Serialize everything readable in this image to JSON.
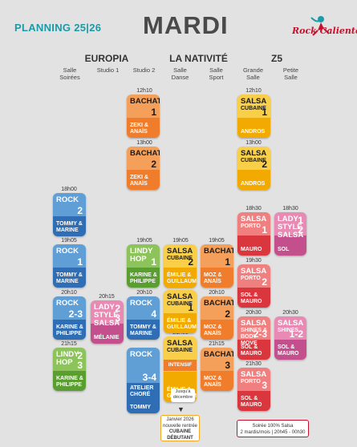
{
  "header": {
    "brand": "PLANNING 25|26",
    "day": "MARDI",
    "logo_text": "Rock Caliente"
  },
  "venues": [
    {
      "name": "EUROPIA"
    },
    {
      "name": "LA NATIVITÉ"
    },
    {
      "name": "Z5"
    }
  ],
  "rooms": [
    "Salle\nSoirées",
    "Studio 1",
    "Studio 2",
    "Salle\nDanse",
    "Salle\nSport",
    "Grande\nSalle",
    "Petite\nSalle"
  ],
  "times": [
    "12h10",
    "13h00",
    "18h00",
    "19h05",
    "20h10",
    "21h15",
    "20h15",
    "19h05",
    "20h10",
    "21h05",
    "19h05",
    "20h10",
    "21h15",
    "18h30",
    "19h30",
    "20h30",
    "21h30",
    "18h30",
    "20h30",
    "12h10",
    "13h00"
  ],
  "cards": {
    "c1": {
      "title": "BACHATA",
      "num": "1",
      "teach": "ZEKI &\nANAÏS"
    },
    "c2": {
      "title": "BACHATA",
      "num": "2",
      "teach": "ZEKI &\nANAÏS"
    },
    "c3": {
      "title": "SALSA",
      "sub": "CUBAINE",
      "num": "1",
      "teach": "ANDROS"
    },
    "c4": {
      "title": "SALSA",
      "sub": "CUBAINE",
      "num": "2",
      "teach": "ANDROS"
    },
    "c5": {
      "title": "ROCK",
      "num": "2",
      "teach": "TOMMY &\nMARINE"
    },
    "c6": {
      "title": "ROCK",
      "num": "1",
      "teach": "TOMMY &\nMARINE"
    },
    "c7": {
      "title": "ROCK",
      "num": "2-3",
      "teach": "KARINE &\nPHILIPPE"
    },
    "c8": {
      "title": "LINDY\nHOP",
      "num": "2\n3",
      "teach": "KARINE &\nPHILIPPE"
    },
    "c9": {
      "title": "LADY\nSTYLE\nSALSA",
      "num": "2\n3",
      "teach": "MÉLANIE"
    },
    "c10": {
      "title": "LINDY\nHOP",
      "num": "1",
      "teach": "KARINE &\nPHILIPPE"
    },
    "c11": {
      "title": "ROCK",
      "num": "4",
      "teach": "TOMMY &\nMARINE"
    },
    "c12": {
      "title": "ROCK",
      "num": "3-4",
      "teach": "ATELIER\nCHORÉ\n\nTOMMY"
    },
    "c13": {
      "title": "SALSA",
      "sub": "CUBAINE",
      "num": "2",
      "teach": "ÉMILIE &\nGUILLAUME"
    },
    "c14": {
      "title": "SALSA",
      "sub": "CUBAINE",
      "num": "1",
      "teach": "ÉMILIE &\nGUILLAUME"
    },
    "c15": {
      "title": "SALSA",
      "sub": "CUBAINE",
      "num": "1-2",
      "band": "INTENSIF",
      "teach": "ÉMILIE &\nGUILLAUME"
    },
    "c16": {
      "title": "BACHATA",
      "num": "1",
      "teach": "MOZ &\nANAÏS"
    },
    "c17": {
      "title": "BACHATA",
      "num": "2",
      "teach": "MOZ &\nANAÏS"
    },
    "c18": {
      "title": "BACHATA",
      "num": "3",
      "teach": "MOZ &\nANAÏS"
    },
    "c19": {
      "title": "SALSA",
      "sub": "PORTO",
      "num": "1",
      "teach": "MAURO"
    },
    "c20": {
      "title": "SALSA",
      "sub": "PORTO",
      "num": "2",
      "teach": "SOL &\nMAURO"
    },
    "c21": {
      "title": "SALSA",
      "sub": "Shines &\nBody Move",
      "num": "2-3",
      "teach": "SOL &\nMAURO"
    },
    "c22": {
      "title": "SALSA",
      "sub": "PORTO",
      "num": "3",
      "teach": "SOL &\nMAURO"
    },
    "c23": {
      "title": "LADY\nSTYLE\nSALSA",
      "num": "1\n2",
      "teach": "SOL"
    },
    "c24": {
      "title": "SALSA",
      "sub": "Shines",
      "num": "1-2",
      "teach": "SOL &\nMAURO"
    }
  },
  "notes": {
    "jusqua": "Jusqu'à\ndécembre",
    "jan_1": "Janvier 2026",
    "jan_2": "nouvelle rentrée",
    "jan_3": "CUBAINE",
    "jan_4": "DÉBUTANT",
    "soiree_1": "Soirée 100% Salsa",
    "soiree_2": "2 mardis/mois | 20h45 - 00h30"
  },
  "colors": {
    "orange_top": "#f5a05a",
    "orange_bot": "#ef7d2b",
    "yellow_top": "#f9cf4a",
    "yellow_bot": "#f2a900",
    "blue_top": "#5f9fd6",
    "blue_bot": "#2f6db5",
    "green_top": "#8cc35b",
    "green_bot": "#5a9e32",
    "pink_top": "#e88ab4",
    "pink_bot": "#c44f8d",
    "red_top": "#f08080",
    "red_bot": "#d9363e"
  }
}
